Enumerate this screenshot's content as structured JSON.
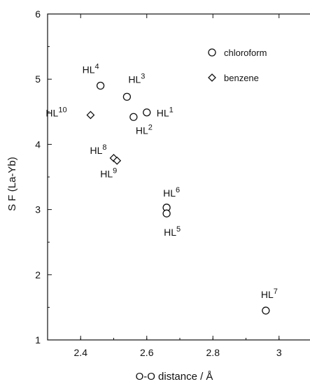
{
  "chart_data": {
    "type": "scatter",
    "xlabel": "O-O distance / Å",
    "ylabel": "S F (La-Yb)",
    "xlim": [
      2.3,
      3.1
    ],
    "ylim": [
      1,
      6
    ],
    "xticks": [
      "2.4",
      "2.6",
      "2.8",
      "3"
    ],
    "yticks": [
      "1",
      "2",
      "3",
      "4",
      "5",
      "6"
    ],
    "legend": {
      "placement": "top-right"
    },
    "series": [
      {
        "name": "chloroform",
        "marker": "circle",
        "points": [
          {
            "x": 2.46,
            "y": 4.9,
            "label": "HL",
            "sup": "4"
          },
          {
            "x": 2.54,
            "y": 4.73,
            "label": "HL",
            "sup": "3"
          },
          {
            "x": 2.56,
            "y": 4.42,
            "label": "HL",
            "sup": "2"
          },
          {
            "x": 2.6,
            "y": 4.49,
            "label": "HL",
            "sup": "1"
          },
          {
            "x": 2.66,
            "y": 3.03,
            "label": "HL",
            "sup": "6"
          },
          {
            "x": 2.66,
            "y": 2.94,
            "label": "HL",
            "sup": "5"
          },
          {
            "x": 2.96,
            "y": 1.45,
            "label": "HL",
            "sup": "7"
          }
        ]
      },
      {
        "name": "benzene",
        "marker": "diamond",
        "points": [
          {
            "x": 2.43,
            "y": 4.45,
            "label": "HL",
            "sup": "10"
          },
          {
            "x": 2.5,
            "y": 3.79,
            "label": "HL",
            "sup": "8"
          },
          {
            "x": 2.51,
            "y": 3.75,
            "label": "HL",
            "sup": "9"
          }
        ]
      }
    ]
  }
}
